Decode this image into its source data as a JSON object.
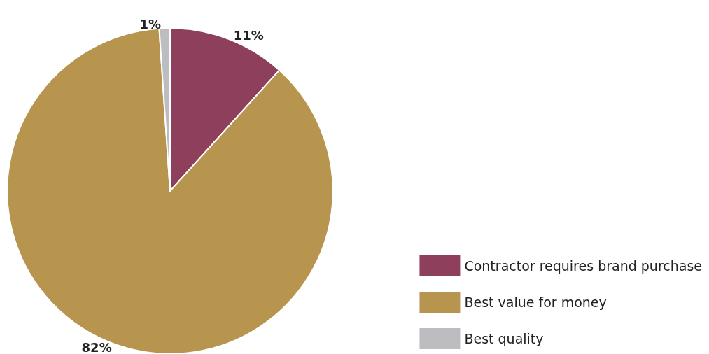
{
  "chart_data": {
    "type": "pie",
    "categories": [
      "Contractor requires brand purchase",
      "Best value for money",
      "Best quality"
    ],
    "values": [
      11,
      82,
      1
    ],
    "value_labels": [
      "11%",
      "82%",
      "1%"
    ],
    "colors": [
      "#8e3f5b",
      "#b8954f",
      "#bcbcc1"
    ],
    "legend": "bottom right"
  }
}
